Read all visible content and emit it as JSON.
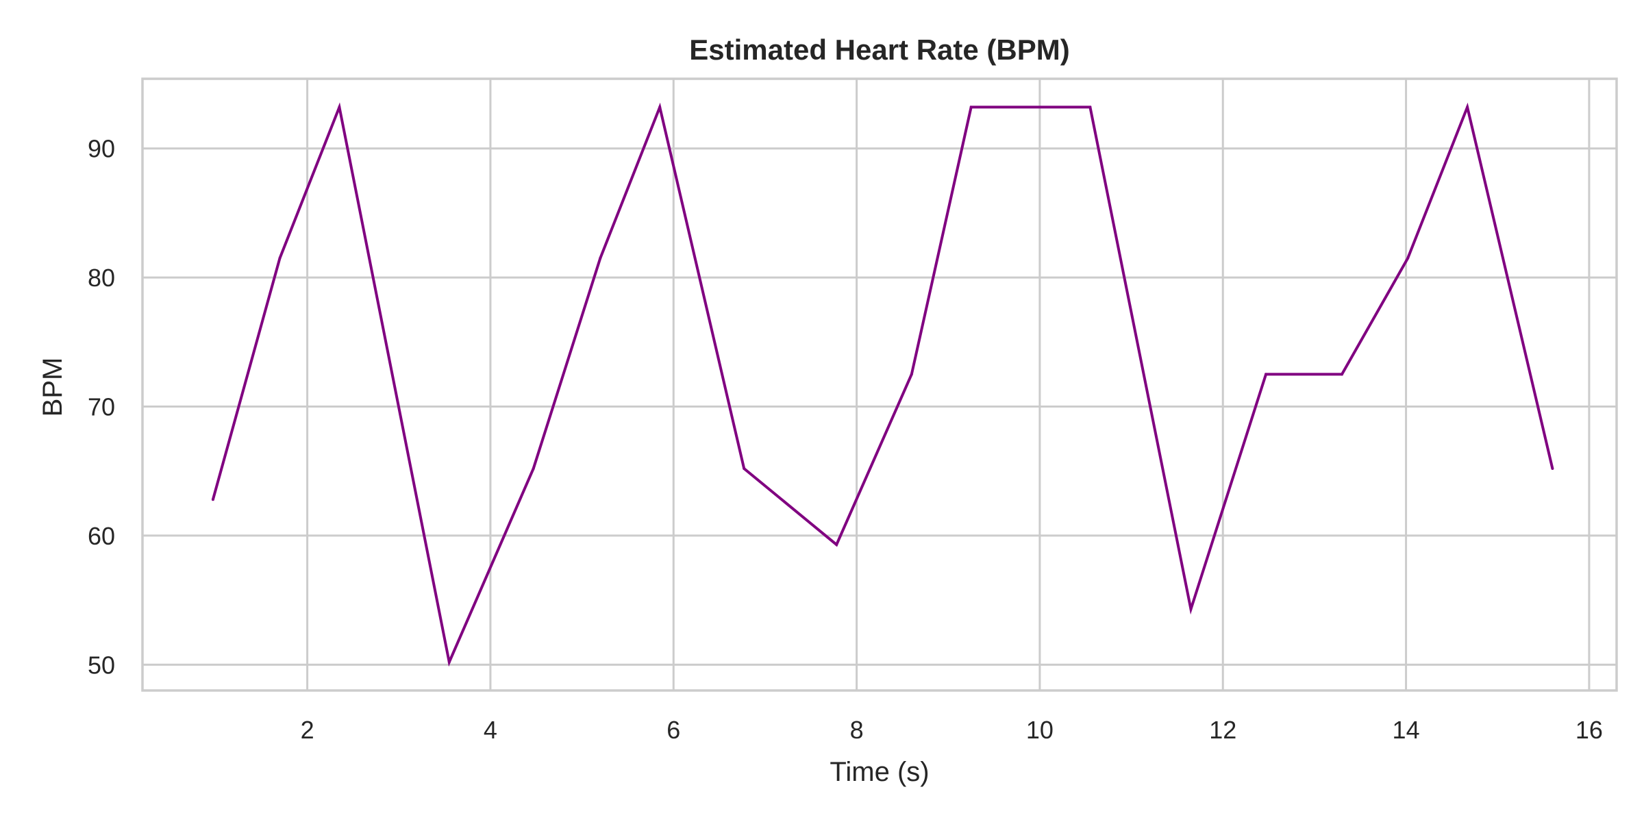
{
  "chart_data": {
    "type": "line",
    "title": "Estimated Heart Rate (BPM)",
    "xlabel": "Time (s)",
    "ylabel": "BPM",
    "xlim": [
      0.2,
      16.3
    ],
    "ylim": [
      48,
      95.4
    ],
    "xticks": [
      2,
      4,
      6,
      8,
      10,
      12,
      14,
      16
    ],
    "yticks": [
      50,
      60,
      70,
      80,
      90
    ],
    "grid": true,
    "legend": "none",
    "series": [
      {
        "color": "#800080",
        "x": [
          0.97,
          1.7,
          2.35,
          3.55,
          4.47,
          5.2,
          5.85,
          6.77,
          7.78,
          8.6,
          9.25,
          10.55,
          11.65,
          12.47,
          13.3,
          14.02,
          14.67,
          15.6
        ],
        "y": [
          62.8,
          81.5,
          93.2,
          50.2,
          65.2,
          81.5,
          93.2,
          65.2,
          59.3,
          72.5,
          93.2,
          93.2,
          54.3,
          72.5,
          72.5,
          81.5,
          93.2,
          65.2
        ]
      }
    ]
  }
}
